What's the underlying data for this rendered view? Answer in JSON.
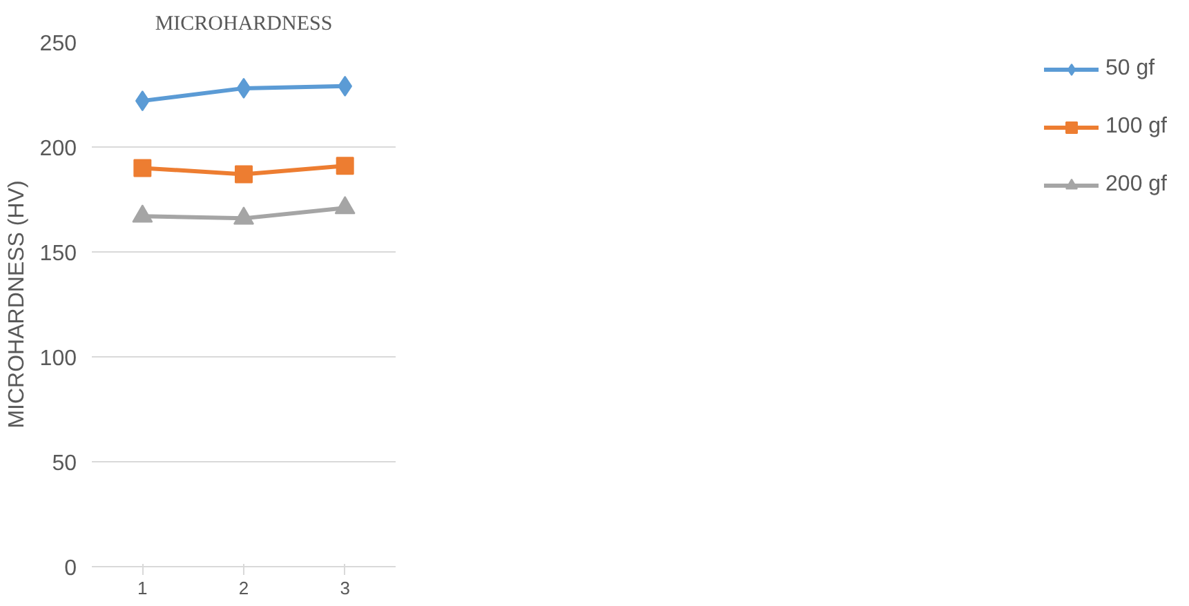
{
  "chart_data": {
    "type": "line",
    "title": "MICROHARDNESS",
    "ylabel": "MICROHARDNESS (HV)",
    "categories": [
      "1",
      "2",
      "3"
    ],
    "series": [
      {
        "name": "50 gf",
        "color": "#5b9bd5",
        "marker": "diamond",
        "values": [
          222,
          228,
          229
        ]
      },
      {
        "name": "100 gf",
        "color": "#ed7d31",
        "marker": "square",
        "values": [
          190,
          187,
          191
        ]
      },
      {
        "name": "200 gf",
        "color": "#a5a5a5",
        "marker": "triangle",
        "values": [
          167,
          166,
          171
        ]
      }
    ],
    "ylim": [
      0,
      250
    ],
    "yticks": [
      0,
      50,
      100,
      150,
      200,
      250
    ],
    "grid": "y",
    "legend": "right"
  }
}
